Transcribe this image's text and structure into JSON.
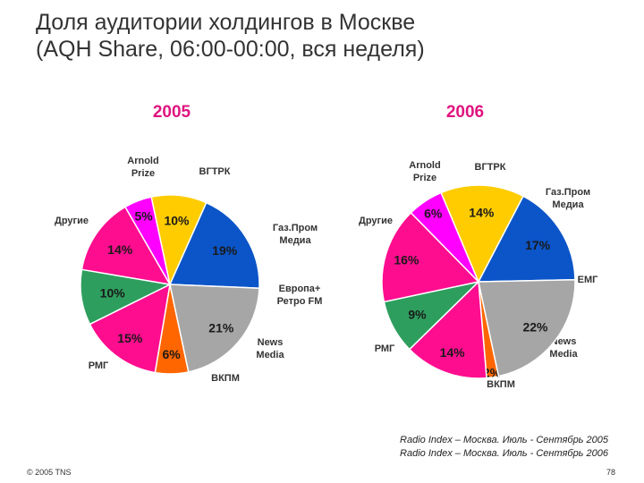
{
  "title_line1": "Доля аудитории холдингов в Москве",
  "title_line2": "(AQH Share, 06:00-00:00, вся неделя)",
  "source_line1": "Radio Index – Москва. Июль - Сентябрь 2005",
  "source_line2": "Radio Index – Москва. Июль - Сентябрь 2006",
  "footer_left": "© 2005 TNS",
  "page_number": "78",
  "colors": {
    "Arnold Prize": "#ff6600",
    "ВГТРК": "#ff0d8f",
    "Газ.Пром Медиа": "#2e9e5e",
    "ЕМГ": "#ff0d8f",
    "Европа+ Ретро FM": "#ff0d8f",
    "News Media": "#ff00ff",
    "ВКПМ": "#ffcc00",
    "РМГ": "#0b55c8",
    "Другие": "#a6a6a6"
  },
  "chart_data": [
    {
      "type": "pie",
      "title": "2005",
      "labels": [
        "Arnold Prize",
        "ВГТРК",
        "Газ.Пром Медиа",
        "Европа+ Ретро FM",
        "News Media",
        "ВКПМ",
        "РМГ",
        "Другие"
      ],
      "label_text": [
        "Arnold\nPrize",
        "ВГТРК",
        "Газ.Пром\nМедиа",
        "Европа+\nРетро FM",
        "News\nMedia",
        "ВКПМ",
        "РМГ",
        "Другие"
      ],
      "values": [
        6,
        15,
        10,
        14,
        5,
        10,
        19,
        21
      ],
      "value_labels": [
        "6%",
        "15%",
        "10%",
        "14%",
        "5%",
        "10%",
        "19%",
        "21%"
      ]
    },
    {
      "type": "pie",
      "title": "2006",
      "labels": [
        "Arnold Prize",
        "ВГТРК",
        "Газ.Пром Медиа",
        "ЕМГ",
        "News Media",
        "ВКПМ",
        "РМГ",
        "Другие"
      ],
      "label_text": [
        "Arnold\nPrize",
        "ВГТРК",
        "Газ.Пром\nМедиа",
        "ЕМГ",
        "News\nMedia",
        "ВКПМ",
        "РМГ",
        "Другие"
      ],
      "values": [
        2,
        14,
        9,
        16,
        6,
        14,
        17,
        22
      ],
      "value_labels": [
        "2%",
        "14%",
        "9%",
        "16%",
        "6%",
        "14%",
        "17%",
        "22%"
      ]
    }
  ]
}
